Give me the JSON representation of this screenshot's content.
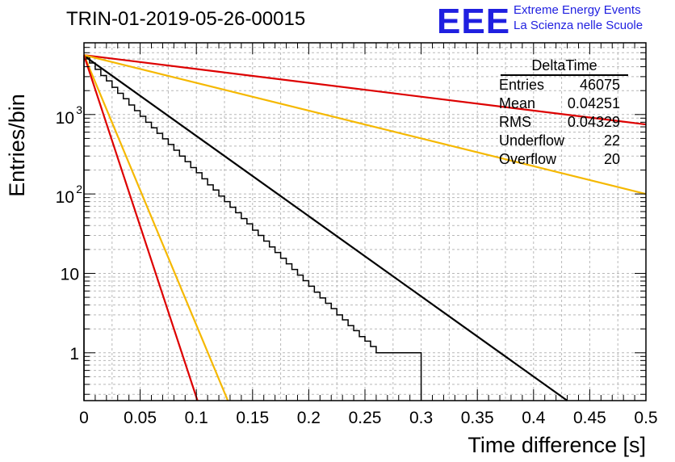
{
  "title": "TRIN-01-2019-05-26-00015",
  "logo": {
    "mark": "EEE",
    "line1": "Extreme Energy Events",
    "line2": "La Scienza nelle Scuole"
  },
  "stats": {
    "name": "DeltaTime",
    "rows": [
      {
        "key": "Entries",
        "value": "46075"
      },
      {
        "key": "Mean",
        "value": "0.04251"
      },
      {
        "key": "RMS",
        "value": "0.04329"
      },
      {
        "key": "Underflow",
        "value": "22"
      },
      {
        "key": "Overflow",
        "value": "20"
      }
    ]
  },
  "chart_data": {
    "type": "line",
    "title": "TRIN-01-2019-05-26-00015",
    "xlabel": "Time difference [s]",
    "ylabel": "Entries/bin",
    "xlim": [
      0,
      0.5
    ],
    "ylim": [
      0.25,
      8000
    ],
    "log_y": true,
    "grid": true,
    "x_ticks": [
      "0",
      "0.05",
      "0.1",
      "0.15",
      "0.2",
      "0.25",
      "0.3",
      "0.35",
      "0.4",
      "0.45",
      "0.5"
    ],
    "y_ticks": [
      {
        "value": 1,
        "label": "1"
      },
      {
        "value": 10,
        "label": "10"
      },
      {
        "value": 100,
        "label": "10",
        "exp": "2"
      },
      {
        "value": 1000,
        "label": "10",
        "exp": "3"
      }
    ],
    "histogram": {
      "bin_width": 0.005,
      "color": "#000000",
      "values": [
        5300,
        4450,
        3700,
        3100,
        2650,
        2200,
        1850,
        1580,
        1320,
        1120,
        950,
        800,
        680,
        580,
        495,
        420,
        355,
        300,
        255,
        215,
        185,
        155,
        130,
        112,
        94,
        80,
        68,
        58,
        49,
        42,
        35,
        30,
        25.5,
        21.5,
        18.3,
        15.5,
        13.2,
        11.2,
        9.5,
        8.1,
        6.9,
        5.8,
        4.9,
        4.2,
        3.6,
        3.0,
        2.6,
        2.2,
        1.9,
        1.6,
        1.4,
        1.2,
        1.0,
        1.0,
        1.0,
        1.0,
        1.0,
        1.0,
        1.0,
        1.0
      ]
    },
    "fits": [
      {
        "color": "#000000",
        "x": [
          0,
          0.43
        ],
        "y": [
          5500,
          0.25
        ]
      },
      {
        "color": "#dd0000",
        "x": [
          0,
          0.5
        ],
        "y": [
          5600,
          750
        ]
      },
      {
        "color": "#f5b800",
        "x": [
          0,
          0.5
        ],
        "y": [
          5600,
          100
        ]
      },
      {
        "color": "#f5b800",
        "x": [
          0,
          0.128
        ],
        "y": [
          5600,
          0.25
        ]
      },
      {
        "color": "#dd0000",
        "x": [
          0,
          0.101
        ],
        "y": [
          5600,
          0.25
        ]
      }
    ]
  }
}
